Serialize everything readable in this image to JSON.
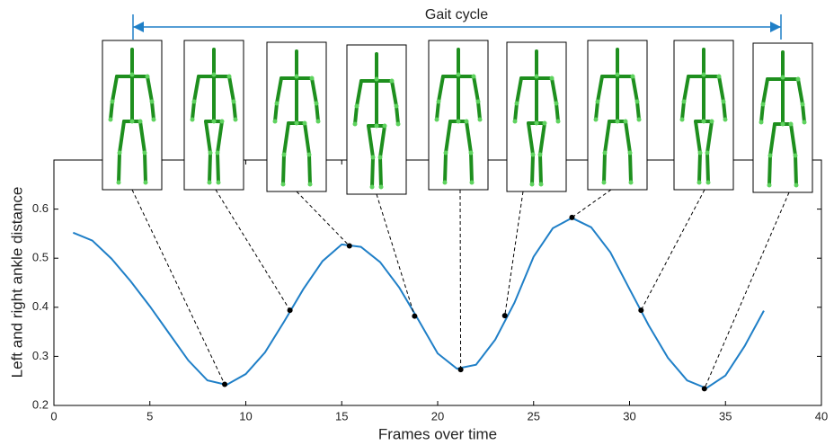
{
  "chart_data": {
    "type": "line",
    "annotation": "Gait cycle",
    "xlabel": "Frames over time",
    "ylabel": "Left and right ankle distance",
    "x": [
      1,
      2,
      3,
      4,
      5,
      6,
      7,
      8,
      9,
      10,
      11,
      12,
      13,
      14,
      15,
      16,
      17,
      18,
      19,
      20,
      21,
      22,
      23,
      24,
      25,
      26,
      27,
      28,
      29,
      30,
      31,
      32,
      33,
      34,
      35,
      36,
      37
    ],
    "series": [
      {
        "color": "#1f7fc7",
        "values": [
          0.552,
          0.536,
          0.499,
          0.453,
          0.402,
          0.347,
          0.292,
          0.251,
          0.242,
          0.264,
          0.308,
          0.371,
          0.437,
          0.494,
          0.528,
          0.523,
          0.492,
          0.44,
          0.374,
          0.306,
          0.275,
          0.283,
          0.334,
          0.409,
          0.503,
          0.561,
          0.582,
          0.563,
          0.512,
          0.437,
          0.363,
          0.297,
          0.251,
          0.235,
          0.261,
          0.321,
          0.393
        ]
      }
    ],
    "keyframes": {
      "color": "#000000",
      "x": [
        8.9,
        12.3,
        15.4,
        18.8,
        21.2,
        23.5,
        27,
        30.6,
        33.9
      ],
      "values": [
        0.243,
        0.394,
        0.525,
        0.382,
        0.273,
        0.383,
        0.583,
        0.394,
        0.234
      ]
    },
    "xlim": [
      0,
      40
    ],
    "ylim": [
      0.2,
      0.7
    ],
    "xticks": [
      0,
      5,
      10,
      15,
      20,
      25,
      30,
      35,
      40
    ],
    "yticks": [
      0.2,
      0.3,
      0.4,
      0.5,
      0.6
    ]
  }
}
